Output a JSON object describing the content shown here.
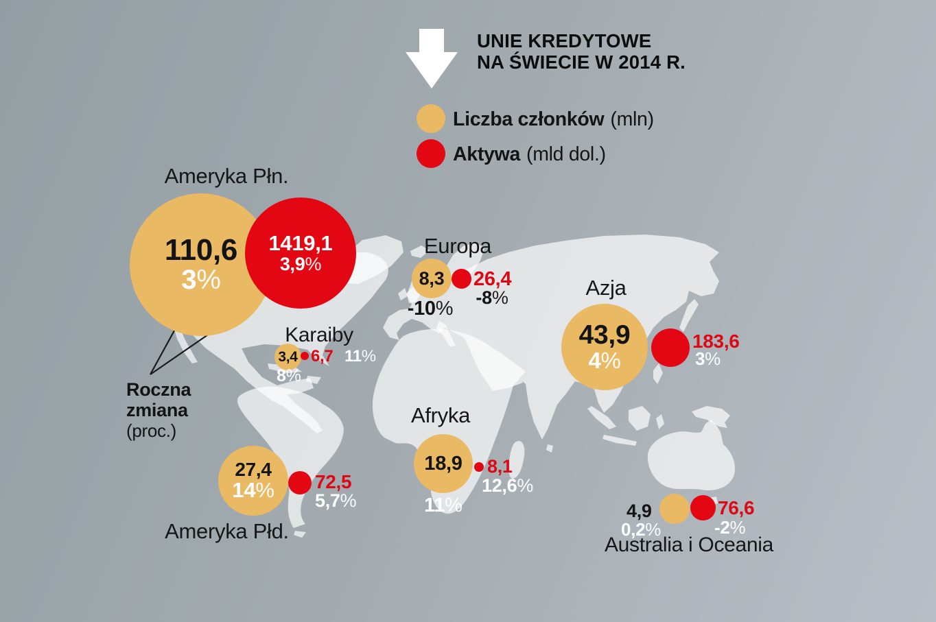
{
  "header": {
    "title_line1": "UNIE KREDYTOWE",
    "title_line2": "NA ŚWIECIE W 2014 R."
  },
  "legend": {
    "members_label": "Liczba członków",
    "members_unit": "(mln)",
    "assets_label": "Aktywa",
    "assets_unit": "(mld dol.)"
  },
  "annotation": {
    "line1": "Roczna",
    "line2": "zmiana",
    "line3": "(proc.)"
  },
  "colors": {
    "members_bubble": "#eab963",
    "assets_bubble": "#e30613",
    "assets_value_text": "#dc0915",
    "sea_background": "#a3abb0",
    "land": "#dfe3e5"
  },
  "chart_data": {
    "type": "bubble-map",
    "title": "Unie kredytowe na świecie w 2014 r.",
    "legend": [
      "Liczba członków (mln)",
      "Aktywa (mld dol.)"
    ],
    "note": "Roczna zmiana (proc.)",
    "regions": [
      {
        "name": "Ameryka Płn.",
        "members_mln": "110,6",
        "members_change": "3%",
        "assets_mld_dol": "1419,1",
        "assets_change": "3,9%"
      },
      {
        "name": "Europa",
        "members_mln": "8,3",
        "members_change": "-10%",
        "assets_mld_dol": "26,4",
        "assets_change": "-8%"
      },
      {
        "name": "Karaiby",
        "members_mln": "3,4",
        "members_change": "8%",
        "assets_mld_dol": "6,7",
        "assets_change": "11%"
      },
      {
        "name": "Azja",
        "members_mln": "43,9",
        "members_change": "4%",
        "assets_mld_dol": "183,6",
        "assets_change": "3%"
      },
      {
        "name": "Afryka",
        "members_mln": "18,9",
        "members_change": "11%",
        "assets_mld_dol": "8,1",
        "assets_change": "12,6%"
      },
      {
        "name": "Ameryka Płd.",
        "members_mln": "27,4",
        "members_change": "14%",
        "assets_mld_dol": "72,5",
        "assets_change": "5,7%"
      },
      {
        "name": "Australia i Oceania",
        "members_mln": "4,9",
        "members_change": "0,2%",
        "assets_mld_dol": "76,6",
        "assets_change": "-2%"
      }
    ]
  }
}
